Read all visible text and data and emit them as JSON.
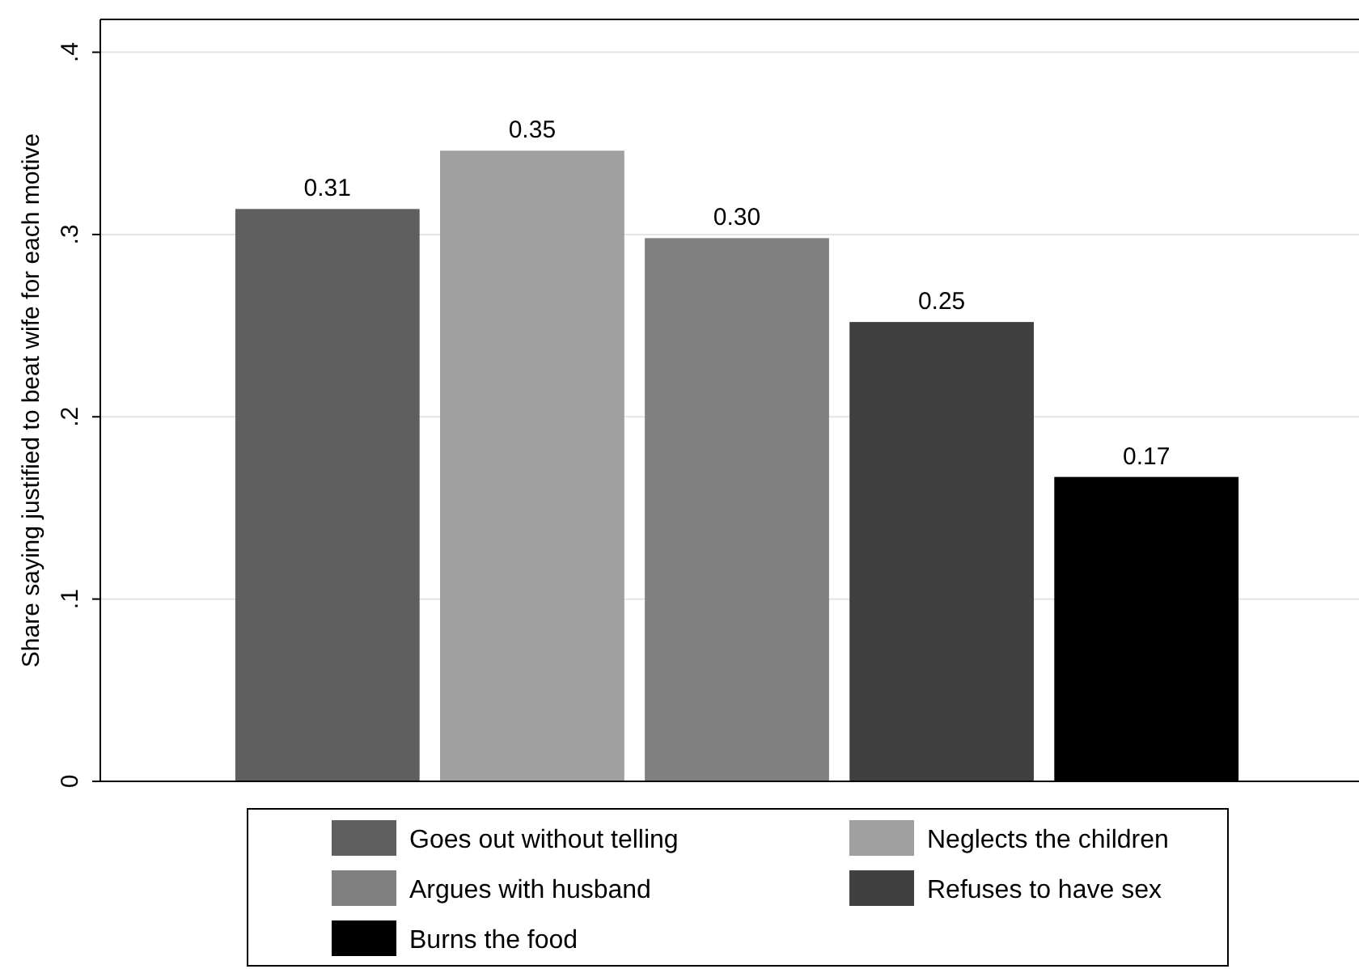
{
  "chart_data": {
    "type": "bar",
    "ylabel": "Share saying justified to beat wife for each motive",
    "categories": [
      null
    ],
    "series": [
      {
        "name": "Goes out without telling",
        "color": "#5f5f5f",
        "values": [
          0.314
        ],
        "value_labels": [
          "0.31"
        ]
      },
      {
        "name": "Neglects the children",
        "color": "#a0a0a0",
        "values": [
          0.346
        ],
        "value_labels": [
          "0.35"
        ]
      },
      {
        "name": "Argues with husband",
        "color": "#808080",
        "values": [
          0.298
        ],
        "value_labels": [
          "0.30"
        ]
      },
      {
        "name": "Refuses to have sex",
        "color": "#404040",
        "values": [
          0.252
        ],
        "value_labels": [
          "0.25"
        ]
      },
      {
        "name": "Burns the food",
        "color": "#000000",
        "values": [
          0.167
        ],
        "value_labels": [
          "0.17"
        ]
      }
    ],
    "ylim": [
      0,
      0.418
    ],
    "yticks": [
      {
        "value": 0,
        "label": "0"
      },
      {
        "value": 0.1,
        "label": ".1"
      },
      {
        "value": 0.2,
        "label": ".2"
      },
      {
        "value": 0.3,
        "label": ".3"
      },
      {
        "value": 0.4,
        "label": ".4"
      }
    ],
    "grid": "y",
    "legend": "bottom"
  }
}
